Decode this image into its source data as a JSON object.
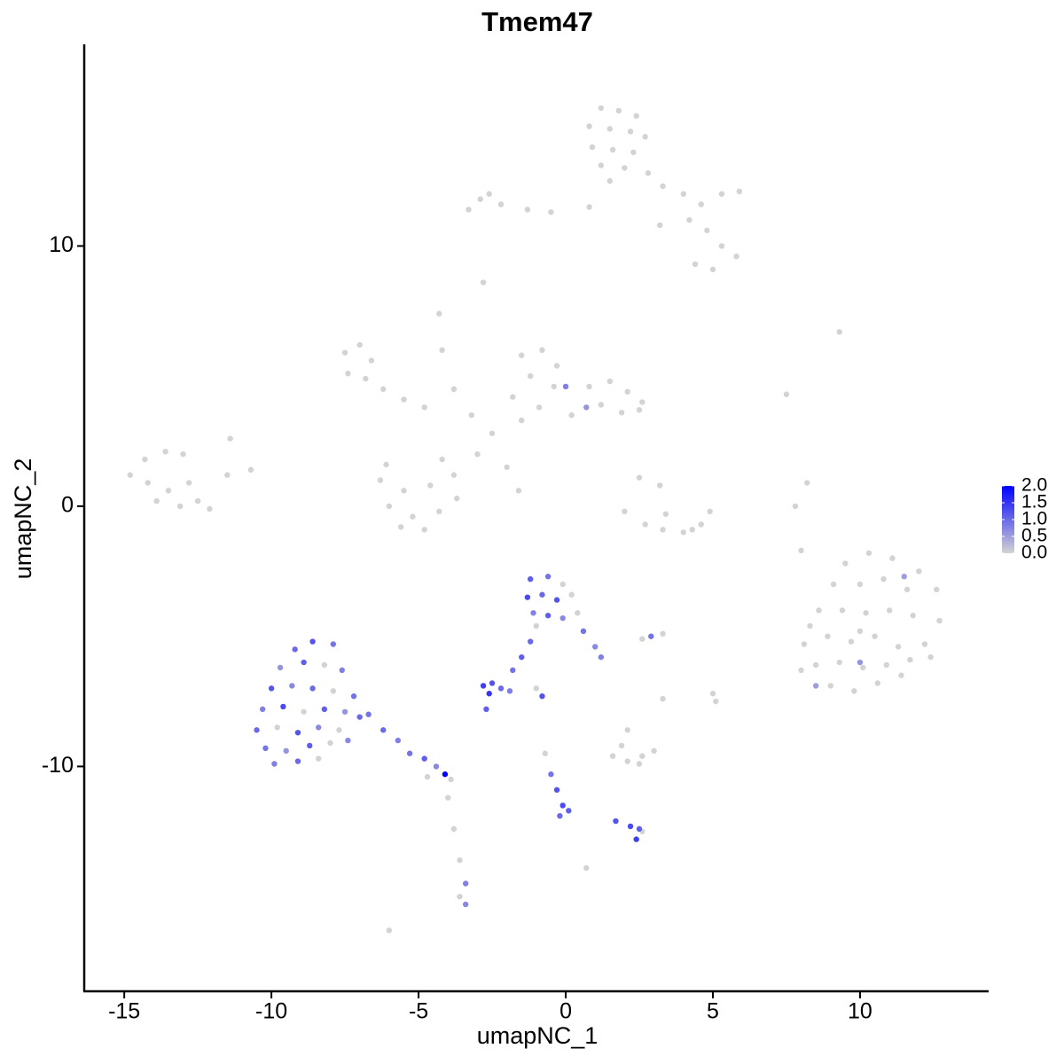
{
  "chart_data": {
    "type": "scatter",
    "title": "Tmem47",
    "x_label": "umapNC_1",
    "y_label": "umapNC_2",
    "xlim": [
      -16.36,
      14.37
    ],
    "ylim": [
      -18.64,
      17.75
    ],
    "xticks": [
      -15,
      -10,
      -5,
      0,
      5,
      10
    ],
    "yticks": [
      -10,
      0,
      10
    ],
    "low_color": "#d3d3d3",
    "high_color": "#0000ff",
    "color_lim": [
      0,
      2
    ],
    "color_ticks": [
      {
        "value": 0,
        "label": "0.0"
      },
      {
        "value": 0.5,
        "label": "0.5"
      },
      {
        "value": 1,
        "label": "1.0"
      },
      {
        "value": 1.5,
        "label": "1.5"
      },
      {
        "value": 2,
        "label": "2.0"
      }
    ],
    "x": [
      1.2,
      1.8,
      2.4,
      0.8,
      1.5,
      2.2,
      2.7,
      0.9,
      1.6,
      2.3,
      1.2,
      2.0,
      2.8,
      1.5,
      3.3,
      4.0,
      4.6,
      5.3,
      5.9,
      4.2,
      4.8,
      5.3,
      5.8,
      4.4,
      5.0,
      3.2,
      0.8,
      -0.5,
      -1.3,
      -2.2,
      -2.9,
      -3.3,
      -2.6,
      -2.8,
      -7.5,
      -7.0,
      -6.6,
      -7.4,
      -6.8,
      -6.2,
      -5.5,
      -4.8,
      -4.3,
      -4.2,
      -3.8,
      -3.2,
      -2.5,
      -3.0,
      -2.0,
      -1.6,
      -6.3,
      -5.5,
      -4.6,
      -3.8,
      -6.0,
      -5.2,
      -4.3,
      -3.7,
      -5.6,
      -4.8,
      -6.1,
      -4.2,
      -1.5,
      -0.8,
      -0.3,
      -1.2,
      -0.4,
      -1.8,
      -0.9,
      -1.5,
      0.8,
      1.5,
      2.1,
      2.6,
      1.2,
      1.9,
      2.5,
      0.2,
      -14.8,
      -14.3,
      -13.6,
      -13.0,
      -14.2,
      -13.5,
      -12.8,
      -13.9,
      -13.1,
      -12.5,
      -12.1,
      -11.5,
      -11.4,
      -10.7,
      2.5,
      3.2,
      3.4,
      2.0,
      2.7,
      3.3,
      4.0,
      4.6,
      4.9,
      4.3,
      9.3,
      7.5,
      8.2,
      7.8,
      8.0,
      9.5,
      10.3,
      11.1,
      12.0,
      8.3,
      9.1,
      10.0,
      10.8,
      11.6,
      12.6,
      8.6,
      9.4,
      10.2,
      11.0,
      11.8,
      12.7,
      8.1,
      8.9,
      9.7,
      10.5,
      11.3,
      12.2,
      8.5,
      9.3,
      10.1,
      10.9,
      11.7,
      12.4,
      9.0,
      9.8,
      10.6,
      11.4,
      8.0,
      10.0,
      1.6,
      2.1,
      2.6,
      3.0,
      1.9,
      2.5,
      2.1,
      2.6,
      3.3,
      5.0,
      5.1,
      3.3,
      0.7,
      -1.0,
      -8.2,
      -7.9,
      -8.9,
      -9.8,
      -7.7,
      -8.0,
      -8.4,
      -4.7,
      -3.9,
      -4.0,
      -3.8,
      -3.6,
      -3.6,
      -6.0,
      -0.1,
      0.2,
      0.4,
      -1.0,
      -0.7,
      2.6,
      10.0,
      11.5,
      8.5,
      0.0,
      0.7,
      -9.2,
      -8.6,
      -7.9,
      -9.7,
      -8.9,
      -7.6,
      -10.0,
      -9.3,
      -8.6,
      -7.2,
      -10.3,
      -9.6,
      -8.2,
      -7.5,
      -10.5,
      -9.1,
      -8.4,
      -7.0,
      -10.2,
      -9.5,
      -8.7,
      -9.9,
      -9.1,
      -7.4,
      -6.7,
      -6.2,
      -5.7,
      -5.3,
      -4.8,
      -4.4,
      -3.4,
      -3.4,
      -1.2,
      -0.6,
      -1.3,
      -0.8,
      -0.3,
      -1.1,
      -0.6,
      -0.1,
      0.6,
      1.0,
      1.2,
      -1.2,
      -1.5,
      -1.8,
      -2.8,
      -2.5,
      -2.2,
      -2.6,
      -1.9,
      -2.7,
      -0.8,
      -0.5,
      -0.3,
      -0.1,
      -0.2,
      0.1,
      1.7,
      2.2,
      2.5,
      2.4,
      2.9,
      -4.1
    ],
    "y": [
      15.3,
      15.2,
      15.0,
      14.6,
      14.5,
      14.4,
      14.2,
      13.8,
      13.7,
      13.6,
      13.1,
      13.0,
      12.8,
      12.5,
      12.3,
      12.0,
      11.6,
      12.0,
      12.1,
      11.0,
      10.6,
      10.0,
      9.6,
      9.3,
      9.1,
      10.8,
      11.5,
      11.3,
      11.4,
      11.6,
      11.8,
      11.4,
      12.0,
      8.6,
      5.9,
      6.2,
      5.6,
      5.1,
      4.9,
      4.5,
      4.1,
      3.8,
      7.4,
      6.0,
      4.5,
      3.5,
      2.8,
      2.0,
      1.5,
      0.6,
      1.0,
      0.6,
      0.8,
      1.2,
      0.0,
      -0.4,
      -0.2,
      0.3,
      -0.8,
      -0.9,
      1.6,
      1.8,
      5.8,
      6.0,
      5.4,
      5.0,
      4.6,
      4.2,
      3.8,
      3.3,
      4.6,
      4.8,
      4.4,
      4.0,
      3.9,
      3.6,
      3.7,
      3.5,
      1.2,
      1.8,
      2.1,
      2.0,
      0.9,
      0.6,
      0.9,
      0.2,
      0.0,
      0.2,
      -0.1,
      1.2,
      2.6,
      1.4,
      1.1,
      0.8,
      -0.3,
      -0.2,
      -0.7,
      -0.9,
      -1.0,
      -0.7,
      -0.2,
      -0.9,
      6.7,
      4.3,
      0.9,
      0.0,
      -1.7,
      -2.2,
      -1.8,
      -2.0,
      -2.5,
      -4.6,
      -3.0,
      -3.0,
      -2.8,
      -3.2,
      -3.2,
      -4.0,
      -4.0,
      -4.1,
      -4.0,
      -4.2,
      -4.4,
      -5.3,
      -5.0,
      -5.2,
      -5.0,
      -5.4,
      -5.3,
      -6.1,
      -6.0,
      -6.2,
      -6.1,
      -5.9,
      -5.8,
      -6.9,
      -7.1,
      -6.8,
      -6.5,
      -6.3,
      -4.8,
      -9.6,
      -9.8,
      -9.6,
      -9.4,
      -9.2,
      -9.9,
      -8.6,
      -5.1,
      -4.9,
      -7.2,
      -7.5,
      -7.4,
      -13.9,
      -7.0,
      -6.1,
      -7.1,
      -7.9,
      -8.5,
      -8.6,
      -9.1,
      -9.7,
      -10.4,
      -10.5,
      -11.2,
      -12.4,
      -13.6,
      -15.0,
      -16.3,
      -3.0,
      -3.4,
      -4.1,
      -4.6,
      -9.5,
      -12.5,
      -6.0,
      -2.7,
      -6.9,
      4.6,
      3.8,
      -5.5,
      -5.2,
      -5.3,
      -6.2,
      -6.0,
      -6.3,
      -7.0,
      -6.9,
      -7.0,
      -7.3,
      -7.8,
      -7.7,
      -7.8,
      -7.9,
      -8.6,
      -8.7,
      -8.5,
      -8.1,
      -9.3,
      -9.4,
      -9.2,
      -9.9,
      -9.8,
      -9.0,
      -8.0,
      -8.6,
      -9.0,
      -9.5,
      -9.7,
      -10.0,
      -14.5,
      -15.3,
      -2.8,
      -2.7,
      -3.5,
      -3.4,
      -3.6,
      -4.1,
      -4.2,
      -4.3,
      -4.8,
      -5.4,
      -5.8,
      -5.2,
      -5.8,
      -6.3,
      -6.9,
      -6.8,
      -7.0,
      -7.2,
      -7.1,
      -7.8,
      -7.3,
      -10.3,
      -10.9,
      -11.5,
      -11.9,
      -11.7,
      -12.1,
      -12.3,
      -12.4,
      -12.8,
      -5.0,
      -10.3
    ],
    "expression": [
      0,
      0,
      0,
      0,
      0,
      0,
      0,
      0,
      0,
      0,
      0,
      0,
      0,
      0,
      0,
      0,
      0,
      0,
      0,
      0,
      0,
      0,
      0,
      0,
      0,
      0,
      0,
      0,
      0,
      0,
      0,
      0,
      0,
      0,
      0,
      0,
      0,
      0,
      0,
      0,
      0,
      0,
      0,
      0,
      0,
      0,
      0,
      0,
      0,
      0,
      0,
      0,
      0,
      0,
      0,
      0,
      0,
      0,
      0,
      0,
      0,
      0,
      0,
      0,
      0,
      0,
      0,
      0,
      0,
      0,
      0,
      0,
      0,
      0,
      0,
      0,
      0,
      0,
      0,
      0,
      0,
      0,
      0,
      0,
      0,
      0,
      0,
      0,
      0,
      0,
      0,
      0,
      0,
      0,
      0,
      0,
      0,
      0,
      0,
      0,
      0,
      0,
      0,
      0,
      0,
      0,
      0,
      0,
      0,
      0,
      0,
      0,
      0,
      0,
      0,
      0,
      0,
      0,
      0,
      0,
      0,
      0,
      0,
      0,
      0,
      0,
      0,
      0,
      0,
      0,
      0,
      0,
      0,
      0,
      0,
      0,
      0,
      0,
      0,
      0,
      0,
      0,
      0,
      0,
      0,
      0,
      0,
      0,
      0,
      0,
      0,
      0,
      0,
      0,
      0,
      0,
      0,
      0,
      0,
      0,
      0,
      0,
      0,
      0,
      0,
      0,
      0,
      0,
      0,
      0,
      0,
      0,
      0,
      0,
      0,
      0.6,
      0.5,
      0.5,
      0.8,
      0.6,
      1.0,
      1.2,
      0.9,
      0.6,
      1.1,
      0.8,
      1.2,
      0.7,
      1.0,
      0.9,
      0.8,
      1.3,
      1.1,
      0.6,
      1.0,
      1.2,
      0.7,
      1.0,
      0.9,
      0.6,
      1.1,
      0.8,
      1.0,
      0.7,
      0.9,
      1.0,
      0.8,
      0.9,
      1.1,
      0.7,
      0.8,
      0.7,
      1.1,
      0.9,
      1.3,
      1.0,
      1.2,
      0.8,
      1.1,
      0.7,
      0.9,
      0.7,
      0.8,
      1.0,
      1.1,
      0.9,
      1.4,
      1.2,
      1.0,
      1.5,
      0.8,
      1.1,
      1.2,
      0.9,
      1.2,
      1.3,
      1.0,
      1.1,
      1.2,
      1.3,
      1.1,
      1.4,
      0.9,
      2.0
    ]
  }
}
